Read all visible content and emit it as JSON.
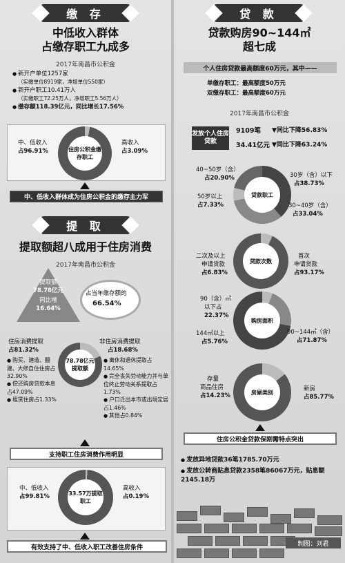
{
  "left": {
    "deposit": {
      "header": "缴 存",
      "title1": "中低收入群体",
      "title2": "占缴存职工九成多",
      "year_label": "2017年南昌市公积金",
      "bullets": [
        {
          "line": "新开户单位1257家",
          "sub": "（实缴单位8919家，净增单位550家）"
        },
        {
          "line": "新开户职工10.41万人",
          "sub": "（实缴职工72.25万人，净增职工5.56万人）"
        },
        {
          "line": "缴存额118.39亿元，同比增长17.56%",
          "sub": ""
        }
      ],
      "donut_center": "住房公积金缴存职工",
      "left_label1": "中、低收入",
      "left_label2": "占96.91%",
      "right_label1": "高收入",
      "right_label2": "占3.09%",
      "bar": "中、低收入群体成为住房公积金的缴存主力军"
    },
    "withdraw": {
      "header": "提 取",
      "title": "提取额超八成用于住房消费",
      "year_label": "2017年南昌市公积金",
      "tri_l1": "提取额",
      "tri_l2": "78.78亿元",
      "tri_l3": "同比增",
      "tri_l4": "16.64%",
      "ratio_l1": "占当年缴存额的",
      "ratio_l2": "66.54%",
      "consume_l1": "住房消费提取",
      "consume_l2": "占81.32%",
      "nonconsume_l1": "非住房消费提取",
      "nonconsume_l2": "占18.68%",
      "donut_center": "78.78亿元提取额",
      "left_notes": [
        "购买、建造、翻建、大修自住住房占32.90%",
        "偿还购房贷款本息占47.09%",
        "租赁住房占1.33%"
      ],
      "right_notes": [
        "离休和退休提取占14.65%",
        "完全丧失劳动能力并与单位终止劳动关系提取占1.73%",
        "户口迁出本市或出境定居占1.46%",
        "其他占0.84%"
      ],
      "bar1": "支持职工住房消费作用明显",
      "donut2_center": "33.57万提取职工",
      "left2_l1": "中、低收入",
      "left2_l2": "占99.81%",
      "right2_l1": "高收入",
      "right2_l2": "占0.19%",
      "bar2": "有效支持了中、低收入职工改善住房条件"
    }
  },
  "right": {
    "header": "贷 款",
    "title1": "贷款购房90~144㎡",
    "title2": "超七成",
    "limit_bar": "个人住房贷款最高额度60万元，其中——",
    "single": "单缴存职工：最高额度50万元",
    "double": "双缴存职工：最高额度60万元",
    "year_label": "2017年南昌市公积金",
    "issue_label": "发放个人住房贷款",
    "stat1_a": "9109笔",
    "stat1_b": "▼同比下降56.83%",
    "stat2_a": "34.41亿元",
    "stat2_b": "▼同比下降63.24%",
    "age": {
      "center": "贷款职工",
      "a1": "40~50岁（含）",
      "a2": "占20.90%",
      "b1": "30岁（含）以下",
      "b2": "占38.73%",
      "c1": "50岁以上",
      "c2": "占7.33%",
      "d1": "30~40岁（含）",
      "d2": "占33.04%"
    },
    "times": {
      "center": "贷款次数",
      "a1": "二次及以上",
      "a2": "申请贷款",
      "a3": "占6.83%",
      "b1": "首次",
      "b2": "申请贷款",
      "b3": "占93.17%"
    },
    "area": {
      "center": "购房面积",
      "a1": "90（含）㎡",
      "a2": "以下占",
      "a3": "22.37%",
      "b1": "144㎡以上",
      "b2": "占5.76%",
      "c1": "90~144㎡（含）",
      "c2": "占71.87%"
    },
    "type": {
      "center": "房屋类别",
      "a1": "存量",
      "a2": "商品住房",
      "a3": "占14.23%",
      "b1": "新房",
      "b2": "占85.77%"
    },
    "bar": "住房公积金贷款保刚需特点突出",
    "foot1": "发放异地贷款36笔1785.70万元",
    "foot2": "发放公转商贴息贷款2358笔86067万元，贴息额2145.18万",
    "credit": "制图：刘君"
  },
  "colors": {
    "dark": "#333333",
    "mid": "#888888",
    "light": "#bbbbbb",
    "bg": "#d9d9d9"
  }
}
